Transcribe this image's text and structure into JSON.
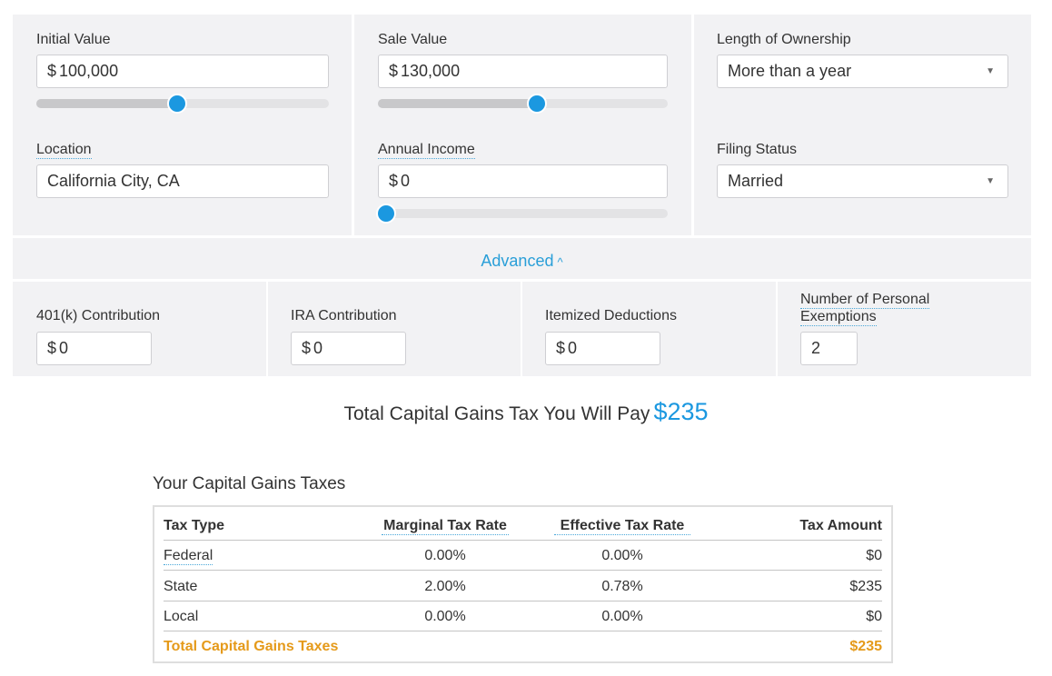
{
  "colors": {
    "accent": "#1b98e0",
    "total_highlight": "#e59a1a",
    "panel_bg": "#f2f2f4"
  },
  "initial_value": {
    "label": "Initial Value",
    "currency": "$",
    "value": "100,000",
    "slider_fraction": 0.48
  },
  "sale_value": {
    "label": "Sale Value",
    "currency": "$",
    "value": "130,000",
    "slider_fraction": 0.55
  },
  "length_of_ownership": {
    "label": "Length of Ownership",
    "selected": "More than a year",
    "arrow_icon": "triangle-down-icon"
  },
  "location": {
    "label": "Location",
    "value": "California City, CA"
  },
  "annual_income": {
    "label": "Annual Income",
    "currency": "$",
    "value": "0",
    "slider_fraction": 0.0
  },
  "filing_status": {
    "label": "Filing Status",
    "selected": "Married",
    "arrow_icon": "triangle-down-icon"
  },
  "advanced_toggle": {
    "label": "Advanced",
    "icon": "chevron-up-icon"
  },
  "advanced": {
    "contribution_401k": {
      "label": "401(k) Contribution",
      "currency": "$",
      "value": "0"
    },
    "ira_contribution": {
      "label": "IRA Contribution",
      "currency": "$",
      "value": "0"
    },
    "itemized_deductions": {
      "label": "Itemized Deductions",
      "currency": "$",
      "value": "0"
    },
    "personal_exemptions": {
      "label_line1": "Number of Personal",
      "label_line2": "Exemptions",
      "value": "2"
    }
  },
  "total_summary": {
    "text": "Total Capital Gains Tax You Will Pay",
    "amount": "$235"
  },
  "taxes_table": {
    "title": "Your Capital Gains Taxes",
    "headers": [
      "Tax Type",
      "Marginal Tax Rate",
      "Effective Tax Rate",
      "Tax Amount"
    ],
    "rows": [
      {
        "type": "Federal",
        "marginal": "0.00%",
        "effective": "0.00%",
        "amount": "$0"
      },
      {
        "type": "State",
        "marginal": "2.00%",
        "effective": "0.78%",
        "amount": "$235"
      },
      {
        "type": "Local",
        "marginal": "0.00%",
        "effective": "0.00%",
        "amount": "$0"
      }
    ],
    "total": {
      "label": "Total Capital Gains Taxes",
      "amount": "$235"
    }
  }
}
